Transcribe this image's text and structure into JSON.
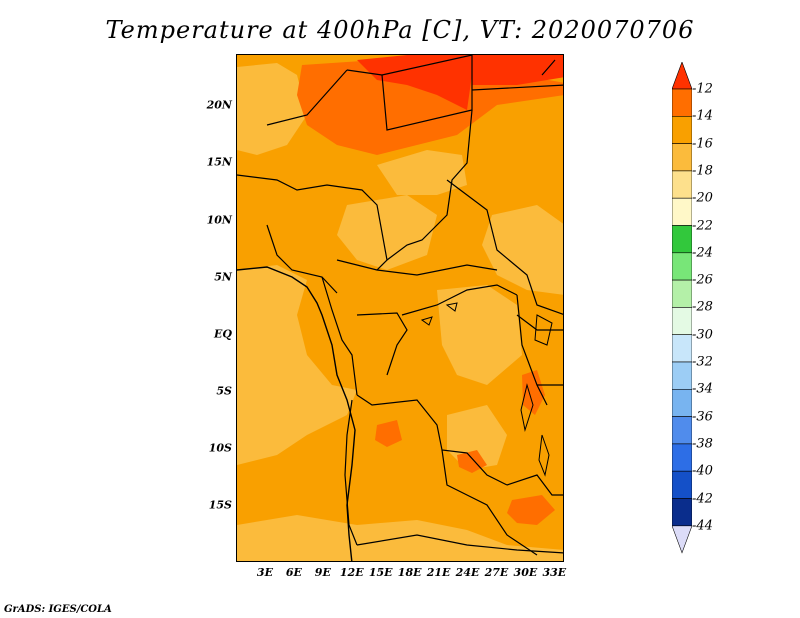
{
  "title": "Temperature at 400hPa [C], VT: 2020070706",
  "credit": "GrADS: IGES/COLA",
  "map": {
    "y_axis_labels": [
      {
        "label": "20N",
        "lat": 20
      },
      {
        "label": "15N",
        "lat": 15
      },
      {
        "label": "10N",
        "lat": 10
      },
      {
        "label": "5N",
        "lat": 5
      },
      {
        "label": "EQ",
        "lat": 0
      },
      {
        "label": "5S",
        "lat": -5
      },
      {
        "label": "10S",
        "lat": -10
      },
      {
        "label": "15S",
        "lat": -15
      }
    ],
    "x_axis_labels": [
      {
        "label": "3E",
        "lon": 3
      },
      {
        "label": "6E",
        "lon": 6
      },
      {
        "label": "9E",
        "lon": 9
      },
      {
        "label": "12E",
        "lon": 12
      },
      {
        "label": "15E",
        "lon": 15
      },
      {
        "label": "18E",
        "lon": 18
      },
      {
        "label": "21E",
        "lon": 21
      },
      {
        "label": "24E",
        "lon": 24
      },
      {
        "label": "27E",
        "lon": 27
      },
      {
        "label": "30E",
        "lon": 30
      },
      {
        "label": "33E",
        "lon": 33
      }
    ],
    "lon_range": [
      0,
      34
    ],
    "lat_range": [
      -20,
      24.5
    ]
  },
  "colorbar": {
    "levels": [
      "-12",
      "-14",
      "-16",
      "-18",
      "-20",
      "-22",
      "-24",
      "-26",
      "-28",
      "-30",
      "-32",
      "-34",
      "-36",
      "-38",
      "-40",
      "-42",
      "-44"
    ],
    "colors": [
      "#ff3200",
      "#ff6e00",
      "#f9a000",
      "#fbbb3c",
      "#fde08c",
      "#fff8c8",
      "#32c83c",
      "#78e678",
      "#b4f0a8",
      "#e4fae4",
      "#c8e6fa",
      "#9ccdf5",
      "#78b4f0",
      "#508cec",
      "#2d6ee6",
      "#1450c8",
      "#0a2d8c",
      "#000a60",
      "#dcdcf8"
    ]
  }
}
